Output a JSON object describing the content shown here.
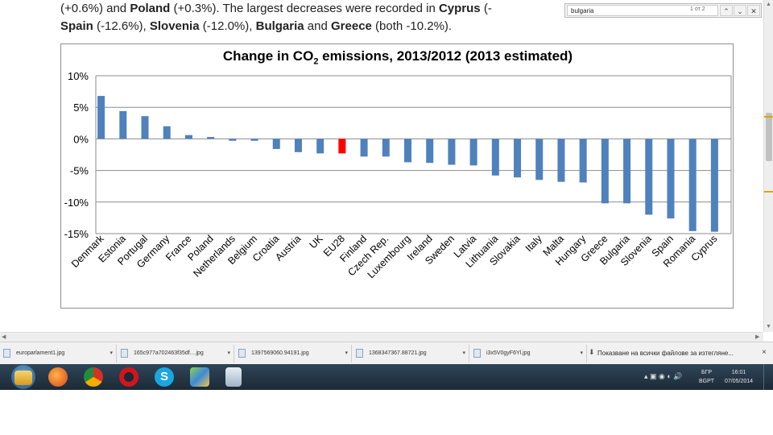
{
  "document": {
    "line1": [
      {
        "t": "(+0.6%) and ",
        "b": false
      },
      {
        "t": "Poland",
        "b": true
      },
      {
        "t": " (+0.3%). The largest decreases were recorded in ",
        "b": false
      },
      {
        "t": "Cyprus",
        "b": true
      },
      {
        "t": " (-",
        "b": false
      }
    ],
    "line2": [
      {
        "t": "Spain",
        "b": true
      },
      {
        "t": " (-12.6%), ",
        "b": false
      },
      {
        "t": "Slovenia",
        "b": true
      },
      {
        "t": " (-12.0%), ",
        "b": false
      },
      {
        "t": "Bulgaria",
        "b": true
      },
      {
        "t": " and ",
        "b": false
      },
      {
        "t": "Greece",
        "b": true
      },
      {
        "t": " (both -10.2%).",
        "b": false
      }
    ]
  },
  "find_bar": {
    "query": "bulgaria",
    "count": "1 от 2",
    "up_icon": "chevron-up-icon",
    "down_icon": "chevron-down-icon",
    "close_icon": "close-icon"
  },
  "chart_data": {
    "type": "bar",
    "title_pre": "Change in CO",
    "title_sub": "2",
    "title_post": " emissions, 2013/2012 (2013 estimated)",
    "categories": [
      "Denmark",
      "Estonia",
      "Portugal",
      "Germany",
      "France",
      "Poland",
      "Netherlands",
      "Belgium",
      "Croatia",
      "Austria",
      "UK",
      "EU28",
      "Finland",
      "Czech Rep.",
      "Luxembourg",
      "Ireland",
      "Sweden",
      "Latvia",
      "Lithuania",
      "Slovakia",
      "Italy",
      "Malta",
      "Hungary",
      "Greece",
      "Bulgaria",
      "Slovenia",
      "Spain",
      "Romania",
      "Cyprus"
    ],
    "values": [
      6.8,
      4.4,
      3.6,
      2.0,
      0.6,
      0.3,
      -0.3,
      -0.3,
      -1.6,
      -2.1,
      -2.3,
      -2.3,
      -2.8,
      -2.8,
      -3.7,
      -3.8,
      -4.1,
      -4.2,
      -5.8,
      -6.1,
      -6.5,
      -6.8,
      -6.9,
      -10.2,
      -10.2,
      -12.0,
      -12.6,
      -14.6,
      -14.7
    ],
    "highlight": "EU28",
    "yticks": [
      "10%",
      "5%",
      "0%",
      "-5%",
      "-10%",
      "-15%"
    ],
    "ylim": [
      -15,
      10
    ],
    "grid": true,
    "colors": {
      "bar": "#4f81bd",
      "highlight": "#ff0000",
      "grid": "#8c8c8c"
    }
  },
  "downloads": {
    "items": [
      "europarlament1.jpg",
      "165c977a702463f35df....jpg",
      "1397569060.94191.jpg",
      "1368347367.88721.jpg",
      "i3x5V0gyF6Yl.jpg"
    ],
    "show_all": "Показване на всички файлове за изтегляне...",
    "close": "×"
  },
  "taskbar": {
    "lang_top": "БГР",
    "lang_bottom": "BGPT",
    "time": "16:01",
    "date": "07/05/2014"
  }
}
